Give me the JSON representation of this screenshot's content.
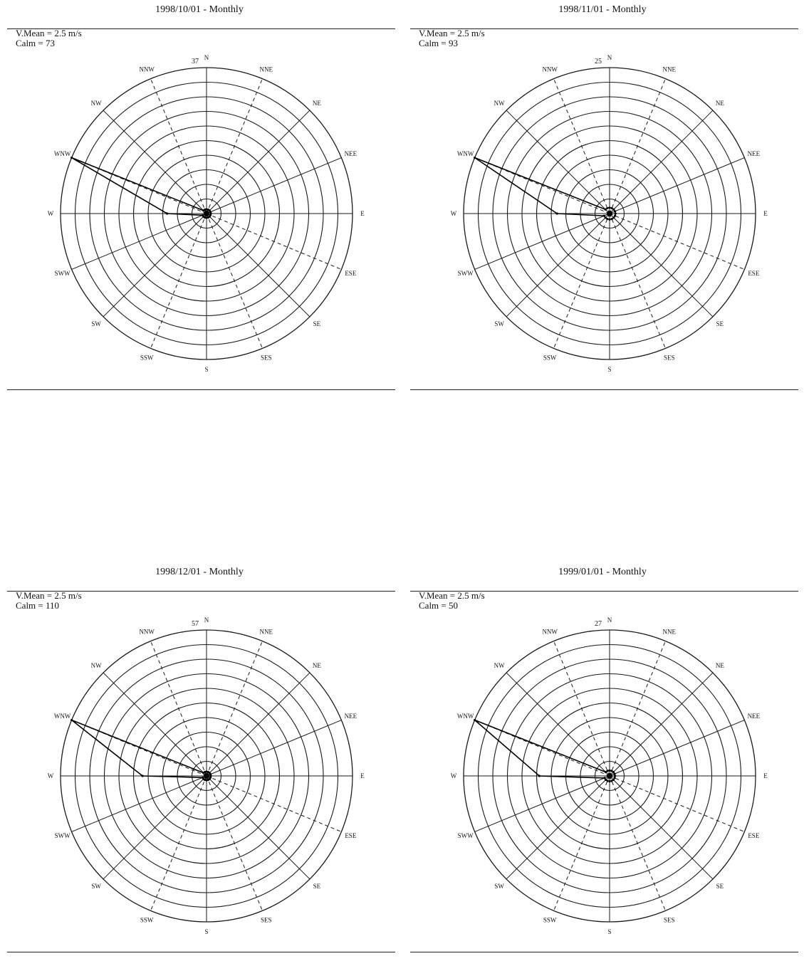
{
  "chart_data": [
    {
      "type": "wind-rose",
      "title": "1998/10/01 - Monthly",
      "vmean": "V.Mean = 2.5 m/s",
      "calm": "Calm = 73",
      "max_label": "37",
      "directions": [
        "N",
        "NNE",
        "NE",
        "NEE",
        "E",
        "ESE",
        "SE",
        "SES",
        "S",
        "SSW",
        "SW",
        "SWW",
        "W",
        "WNW",
        "NW",
        "NNW"
      ],
      "rings": 10,
      "rmax": 37,
      "values": [
        1,
        1,
        1,
        1,
        1,
        1,
        1,
        1,
        1,
        1,
        1,
        1,
        10,
        37,
        1,
        1
      ]
    },
    {
      "type": "wind-rose",
      "title": "1998/11/01 - Monthly",
      "vmean": "V.Mean = 2.5 m/s",
      "calm": "Calm = 93",
      "max_label": "25",
      "directions": [
        "N",
        "NNE",
        "NE",
        "NEE",
        "E",
        "ESE",
        "SE",
        "SES",
        "S",
        "SSW",
        "SW",
        "SWW",
        "W",
        "WNW",
        "NW",
        "NNW"
      ],
      "rings": 10,
      "rmax": 25,
      "values": [
        1,
        1,
        1,
        1,
        1,
        1,
        1,
        1,
        1,
        1,
        1,
        1,
        9,
        25,
        1,
        1
      ]
    },
    {
      "type": "wind-rose",
      "title": "1998/12/01 - Monthly",
      "vmean": "V.Mean = 2.5 m/s",
      "calm": "Calm = 110",
      "max_label": "57",
      "directions": [
        "N",
        "NNE",
        "NE",
        "NEE",
        "E",
        "ESE",
        "SE",
        "SES",
        "S",
        "SSW",
        "SW",
        "SWW",
        "W",
        "WNW",
        "NW",
        "NNW"
      ],
      "rings": 10,
      "rmax": 57,
      "values": [
        1,
        1,
        1,
        1,
        1,
        1,
        1,
        1,
        1,
        1,
        1,
        1,
        25,
        57,
        1,
        1
      ]
    },
    {
      "type": "wind-rose",
      "title": "1999/01/01 - Monthly",
      "vmean": "V.Mean = 2.5 m/s",
      "calm": "Calm = 50",
      "max_label": "27",
      "directions": [
        "N",
        "NNE",
        "NE",
        "NEE",
        "E",
        "ESE",
        "SE",
        "SES",
        "S",
        "SSW",
        "SW",
        "SWW",
        "W",
        "WNW",
        "NW",
        "NNW"
      ],
      "rings": 10,
      "rmax": 27,
      "values": [
        1,
        1,
        1,
        1,
        1,
        1,
        1,
        1,
        1,
        1,
        1,
        1,
        13,
        27,
        1,
        1
      ]
    }
  ]
}
